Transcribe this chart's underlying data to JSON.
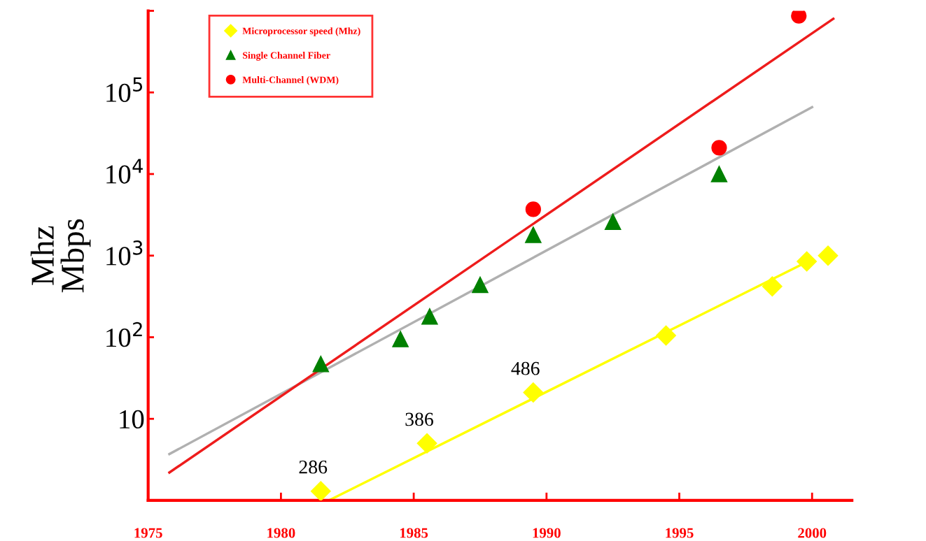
{
  "chart_data": {
    "type": "scatter",
    "ylabel": "Mbps",
    "log": "y",
    "xlim": [
      1975,
      2001.5
    ],
    "ylim": [
      1,
      1000000
    ],
    "xticks": [
      1975,
      1980,
      1985,
      1990,
      1995,
      2000
    ],
    "yticks": [
      {
        "value": 1,
        "label": null
      },
      {
        "value": 10,
        "label": "10"
      },
      {
        "value": 100,
        "label": "10$^{2}$"
      },
      {
        "value": 1000,
        "label": "10$^{3}$"
      },
      {
        "value": 10000,
        "label": "10$^{4}$"
      },
      {
        "value": 100000,
        "label": "10$^{5}$"
      },
      {
        "value": 1000000,
        "label": null
      }
    ],
    "grid": false,
    "legend": "top left",
    "series": [
      {
        "name": "Microprocessor speed (Mhz)",
        "marker": "diamond",
        "color": "#ffff00",
        "x": [
          1981.5,
          1985.5,
          1989.5,
          1994.5,
          1998.5,
          1999.8,
          2000.6
        ],
        "values": [
          1.3,
          5,
          21,
          105,
          420,
          850,
          1000
        ]
      },
      {
        "name": "Single Channel Fiber",
        "marker": "triangle",
        "color": "#008000",
        "x": [
          1981.5,
          1984.5,
          1985.6,
          1987.5,
          1989.5,
          1992.5,
          1996.5
        ],
        "values": [
          47,
          95,
          180,
          440,
          1800,
          2600,
          10000
        ]
      },
      {
        "name": "Multi-Channel (WDM)",
        "marker": "circle",
        "color": "#ff0000",
        "x": [
          1989.5,
          1996.5,
          1999.5
        ],
        "values": [
          3700,
          21000,
          870000
        ]
      },
      {
        "type": "line",
        "color": "#ffff00",
        "x": [
          1981.8,
          2000
        ],
        "values": [
          1,
          900
        ]
      },
      {
        "type": "line",
        "color": "#b0b0b0",
        "x": [
          1975.8,
          2000
        ],
        "values": [
          3.7,
          66000
        ]
      },
      {
        "type": "line",
        "color": "#ee1c1c",
        "x": [
          1975.8,
          2000.8
        ],
        "values": [
          2.2,
          800000
        ]
      }
    ],
    "annotations": [
      "Mhz",
      {
        "text": "286",
        "x": 1981.5,
        "y": 1.3
      },
      {
        "text": "386",
        "x": 1985.5,
        "y": 5
      },
      {
        "text": "486",
        "x": 1989.5,
        "y": 21
      }
    ]
  }
}
